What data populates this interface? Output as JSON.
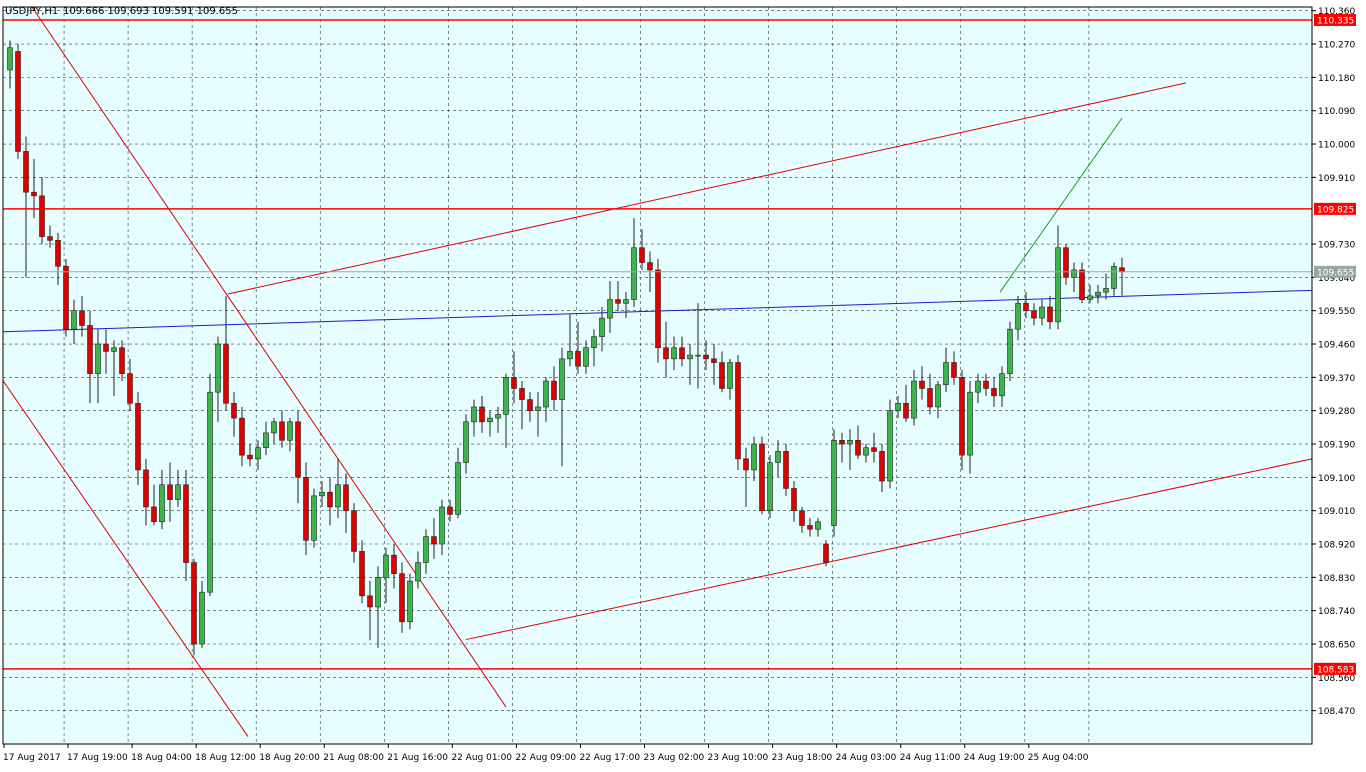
{
  "header": {
    "symbol": "USDJPY,H1",
    "ohlc": "109.666 109.693 109.591 109.655"
  },
  "colors": {
    "background": "#e6feff",
    "grid": "#3a3a3a",
    "bull": "#3cb44a",
    "bear": "#e00000",
    "level_line": "#ff0000",
    "trend_line": "#e00000",
    "mid_line": "#1c1ccc",
    "projection": "#1e9e1e",
    "last_price_line": "#9aa5a5"
  },
  "chart_data": {
    "type": "candlestick",
    "timeframe": "H1",
    "ylim": [
      108.38,
      110.37
    ],
    "y_ticks": [
      "110.360",
      "110.270",
      "110.180",
      "110.090",
      "110.000",
      "109.910",
      "109.730",
      "109.640",
      "109.550",
      "109.460",
      "109.370",
      "109.280",
      "109.190",
      "109.100",
      "109.010",
      "108.920",
      "108.830",
      "108.740",
      "108.650",
      "108.560",
      "108.470"
    ],
    "x_labels": [
      "17 Aug 2017",
      "17 Aug 19:00",
      "18 Aug 04:00",
      "18 Aug 12:00",
      "18 Aug 20:00",
      "21 Aug 08:00",
      "21 Aug 16:00",
      "22 Aug 01:00",
      "22 Aug 09:00",
      "22 Aug 17:00",
      "23 Aug 02:00",
      "23 Aug 10:00",
      "23 Aug 18:00",
      "24 Aug 03:00",
      "24 Aug 11:00",
      "24 Aug 19:00",
      "25 Aug 04:00"
    ],
    "levels": [
      {
        "label": "110.335",
        "value": 110.335
      },
      {
        "label": "109.825",
        "value": 109.825
      },
      {
        "label": "108.583",
        "value": 108.583
      }
    ],
    "last_price": {
      "label": "109.655",
      "value": 109.655
    },
    "candles": [
      {
        "o": 110.2,
        "h": 110.28,
        "l": 110.15,
        "c": 110.26
      },
      {
        "o": 110.25,
        "h": 110.27,
        "l": 109.96,
        "c": 109.98
      },
      {
        "o": 109.98,
        "h": 110.02,
        "l": 109.64,
        "c": 109.87
      },
      {
        "o": 109.87,
        "h": 109.96,
        "l": 109.8,
        "c": 109.86
      },
      {
        "o": 109.86,
        "h": 109.91,
        "l": 109.73,
        "c": 109.75
      },
      {
        "o": 109.75,
        "h": 109.78,
        "l": 109.72,
        "c": 109.74
      },
      {
        "o": 109.74,
        "h": 109.76,
        "l": 109.62,
        "c": 109.67
      },
      {
        "o": 109.67,
        "h": 109.69,
        "l": 109.48,
        "c": 109.5
      },
      {
        "o": 109.5,
        "h": 109.58,
        "l": 109.46,
        "c": 109.55
      },
      {
        "o": 109.55,
        "h": 109.59,
        "l": 109.48,
        "c": 109.51
      },
      {
        "o": 109.51,
        "h": 109.55,
        "l": 109.3,
        "c": 109.38
      },
      {
        "o": 109.38,
        "h": 109.5,
        "l": 109.3,
        "c": 109.46
      },
      {
        "o": 109.46,
        "h": 109.5,
        "l": 109.38,
        "c": 109.44
      },
      {
        "o": 109.44,
        "h": 109.47,
        "l": 109.32,
        "c": 109.45
      },
      {
        "o": 109.45,
        "h": 109.47,
        "l": 109.36,
        "c": 109.38
      },
      {
        "o": 109.38,
        "h": 109.42,
        "l": 109.28,
        "c": 109.3
      },
      {
        "o": 109.3,
        "h": 109.33,
        "l": 109.08,
        "c": 109.12
      },
      {
        "o": 109.12,
        "h": 109.15,
        "l": 108.97,
        "c": 109.02
      },
      {
        "o": 109.02,
        "h": 109.08,
        "l": 108.97,
        "c": 108.98
      },
      {
        "o": 108.98,
        "h": 109.12,
        "l": 108.96,
        "c": 109.08
      },
      {
        "o": 109.08,
        "h": 109.14,
        "l": 108.98,
        "c": 109.04
      },
      {
        "o": 109.04,
        "h": 109.12,
        "l": 109.02,
        "c": 109.08
      },
      {
        "o": 109.08,
        "h": 109.12,
        "l": 108.82,
        "c": 108.87
      },
      {
        "o": 108.87,
        "h": 108.88,
        "l": 108.62,
        "c": 108.65
      },
      {
        "o": 108.65,
        "h": 108.82,
        "l": 108.64,
        "c": 108.79
      },
      {
        "o": 108.79,
        "h": 109.38,
        "l": 108.78,
        "c": 109.33
      },
      {
        "o": 109.33,
        "h": 109.48,
        "l": 109.25,
        "c": 109.46
      },
      {
        "o": 109.46,
        "h": 109.59,
        "l": 109.28,
        "c": 109.3
      },
      {
        "o": 109.3,
        "h": 109.33,
        "l": 109.21,
        "c": 109.26
      },
      {
        "o": 109.26,
        "h": 109.29,
        "l": 109.13,
        "c": 109.16
      },
      {
        "o": 109.16,
        "h": 109.19,
        "l": 109.13,
        "c": 109.15
      },
      {
        "o": 109.15,
        "h": 109.2,
        "l": 109.12,
        "c": 109.18
      },
      {
        "o": 109.18,
        "h": 109.25,
        "l": 109.16,
        "c": 109.22
      },
      {
        "o": 109.22,
        "h": 109.26,
        "l": 109.19,
        "c": 109.25
      },
      {
        "o": 109.25,
        "h": 109.28,
        "l": 109.18,
        "c": 109.2
      },
      {
        "o": 109.2,
        "h": 109.26,
        "l": 109.17,
        "c": 109.25
      },
      {
        "o": 109.25,
        "h": 109.28,
        "l": 109.03,
        "c": 109.1
      },
      {
        "o": 109.1,
        "h": 109.14,
        "l": 108.89,
        "c": 108.93
      },
      {
        "o": 108.93,
        "h": 109.07,
        "l": 108.91,
        "c": 109.05
      },
      {
        "o": 109.05,
        "h": 109.09,
        "l": 109.02,
        "c": 109.06
      },
      {
        "o": 109.06,
        "h": 109.1,
        "l": 108.97,
        "c": 109.02
      },
      {
        "o": 109.02,
        "h": 109.15,
        "l": 108.99,
        "c": 109.08
      },
      {
        "o": 109.08,
        "h": 109.11,
        "l": 108.95,
        "c": 109.01
      },
      {
        "o": 109.01,
        "h": 109.03,
        "l": 108.87,
        "c": 108.9
      },
      {
        "o": 108.9,
        "h": 108.93,
        "l": 108.76,
        "c": 108.78
      },
      {
        "o": 108.78,
        "h": 108.82,
        "l": 108.66,
        "c": 108.75
      },
      {
        "o": 108.75,
        "h": 108.86,
        "l": 108.64,
        "c": 108.83
      },
      {
        "o": 108.83,
        "h": 108.91,
        "l": 108.76,
        "c": 108.89
      },
      {
        "o": 108.89,
        "h": 108.92,
        "l": 108.8,
        "c": 108.84
      },
      {
        "o": 108.84,
        "h": 108.87,
        "l": 108.68,
        "c": 108.71
      },
      {
        "o": 108.71,
        "h": 108.84,
        "l": 108.69,
        "c": 108.82
      },
      {
        "o": 108.82,
        "h": 108.9,
        "l": 108.8,
        "c": 108.87
      },
      {
        "o": 108.87,
        "h": 108.96,
        "l": 108.84,
        "c": 108.94
      },
      {
        "o": 108.94,
        "h": 108.99,
        "l": 108.88,
        "c": 108.92
      },
      {
        "o": 108.92,
        "h": 109.04,
        "l": 108.89,
        "c": 109.02
      },
      {
        "o": 109.02,
        "h": 109.04,
        "l": 108.98,
        "c": 109.0
      },
      {
        "o": 109.0,
        "h": 109.18,
        "l": 108.99,
        "c": 109.14
      },
      {
        "o": 109.14,
        "h": 109.27,
        "l": 109.11,
        "c": 109.25
      },
      {
        "o": 109.25,
        "h": 109.31,
        "l": 109.21,
        "c": 109.29
      },
      {
        "o": 109.29,
        "h": 109.32,
        "l": 109.22,
        "c": 109.25
      },
      {
        "o": 109.25,
        "h": 109.28,
        "l": 109.21,
        "c": 109.26
      },
      {
        "o": 109.26,
        "h": 109.29,
        "l": 109.22,
        "c": 109.27
      },
      {
        "o": 109.27,
        "h": 109.38,
        "l": 109.18,
        "c": 109.37
      },
      {
        "o": 109.37,
        "h": 109.44,
        "l": 109.3,
        "c": 109.34
      },
      {
        "o": 109.34,
        "h": 109.36,
        "l": 109.23,
        "c": 109.31
      },
      {
        "o": 109.31,
        "h": 109.33,
        "l": 109.25,
        "c": 109.28
      },
      {
        "o": 109.28,
        "h": 109.33,
        "l": 109.21,
        "c": 109.29
      },
      {
        "o": 109.29,
        "h": 109.37,
        "l": 109.25,
        "c": 109.36
      },
      {
        "o": 109.36,
        "h": 109.4,
        "l": 109.28,
        "c": 109.31
      },
      {
        "o": 109.31,
        "h": 109.45,
        "l": 109.13,
        "c": 109.42
      },
      {
        "o": 109.42,
        "h": 109.54,
        "l": 109.4,
        "c": 109.44
      },
      {
        "o": 109.44,
        "h": 109.52,
        "l": 109.38,
        "c": 109.4
      },
      {
        "o": 109.4,
        "h": 109.47,
        "l": 109.38,
        "c": 109.45
      },
      {
        "o": 109.45,
        "h": 109.5,
        "l": 109.4,
        "c": 109.48
      },
      {
        "o": 109.48,
        "h": 109.56,
        "l": 109.44,
        "c": 109.53
      },
      {
        "o": 109.53,
        "h": 109.63,
        "l": 109.49,
        "c": 109.58
      },
      {
        "o": 109.58,
        "h": 109.63,
        "l": 109.55,
        "c": 109.57
      },
      {
        "o": 109.57,
        "h": 109.6,
        "l": 109.53,
        "c": 109.58
      },
      {
        "o": 109.58,
        "h": 109.8,
        "l": 109.56,
        "c": 109.72
      },
      {
        "o": 109.72,
        "h": 109.77,
        "l": 109.66,
        "c": 109.68
      },
      {
        "o": 109.68,
        "h": 109.71,
        "l": 109.6,
        "c": 109.66
      },
      {
        "o": 109.66,
        "h": 109.69,
        "l": 109.41,
        "c": 109.45
      },
      {
        "o": 109.45,
        "h": 109.52,
        "l": 109.37,
        "c": 109.42
      },
      {
        "o": 109.42,
        "h": 109.48,
        "l": 109.39,
        "c": 109.45
      },
      {
        "o": 109.45,
        "h": 109.48,
        "l": 109.4,
        "c": 109.42
      },
      {
        "o": 109.42,
        "h": 109.46,
        "l": 109.35,
        "c": 109.43
      },
      {
        "o": 109.43,
        "h": 109.57,
        "l": 109.34,
        "c": 109.43
      },
      {
        "o": 109.43,
        "h": 109.47,
        "l": 109.39,
        "c": 109.42
      },
      {
        "o": 109.42,
        "h": 109.46,
        "l": 109.35,
        "c": 109.41
      },
      {
        "o": 109.41,
        "h": 109.44,
        "l": 109.33,
        "c": 109.34
      },
      {
        "o": 109.34,
        "h": 109.42,
        "l": 109.31,
        "c": 109.41
      },
      {
        "o": 109.41,
        "h": 109.43,
        "l": 109.12,
        "c": 109.15
      },
      {
        "o": 109.15,
        "h": 109.18,
        "l": 109.02,
        "c": 109.12
      },
      {
        "o": 109.12,
        "h": 109.21,
        "l": 109.09,
        "c": 109.19
      },
      {
        "o": 109.19,
        "h": 109.21,
        "l": 109.0,
        "c": 109.01
      },
      {
        "o": 109.01,
        "h": 109.16,
        "l": 108.99,
        "c": 109.14
      },
      {
        "o": 109.14,
        "h": 109.2,
        "l": 109.1,
        "c": 109.17
      },
      {
        "o": 109.17,
        "h": 109.19,
        "l": 109.05,
        "c": 109.07
      },
      {
        "o": 109.07,
        "h": 109.09,
        "l": 108.98,
        "c": 109.01
      },
      {
        "o": 109.01,
        "h": 109.02,
        "l": 108.95,
        "c": 108.97
      },
      {
        "o": 108.97,
        "h": 108.99,
        "l": 108.94,
        "c": 108.96
      },
      {
        "o": 108.96,
        "h": 108.99,
        "l": 108.94,
        "c": 108.98
      },
      {
        "o": 108.92,
        "h": 108.93,
        "l": 108.86,
        "c": 108.87
      },
      {
        "o": 108.97,
        "h": 109.23,
        "l": 108.94,
        "c": 109.2
      },
      {
        "o": 109.2,
        "h": 109.22,
        "l": 109.14,
        "c": 109.19
      },
      {
        "o": 109.19,
        "h": 109.23,
        "l": 109.12,
        "c": 109.2
      },
      {
        "o": 109.2,
        "h": 109.24,
        "l": 109.15,
        "c": 109.16
      },
      {
        "o": 109.16,
        "h": 109.19,
        "l": 109.14,
        "c": 109.18
      },
      {
        "o": 109.18,
        "h": 109.22,
        "l": 109.14,
        "c": 109.17
      },
      {
        "o": 109.17,
        "h": 109.19,
        "l": 109.06,
        "c": 109.09
      },
      {
        "o": 109.09,
        "h": 109.31,
        "l": 109.07,
        "c": 109.28
      },
      {
        "o": 109.28,
        "h": 109.32,
        "l": 109.26,
        "c": 109.3
      },
      {
        "o": 109.3,
        "h": 109.35,
        "l": 109.25,
        "c": 109.26
      },
      {
        "o": 109.26,
        "h": 109.39,
        "l": 109.24,
        "c": 109.36
      },
      {
        "o": 109.36,
        "h": 109.4,
        "l": 109.31,
        "c": 109.34
      },
      {
        "o": 109.34,
        "h": 109.38,
        "l": 109.27,
        "c": 109.29
      },
      {
        "o": 109.29,
        "h": 109.36,
        "l": 109.26,
        "c": 109.35
      },
      {
        "o": 109.35,
        "h": 109.45,
        "l": 109.33,
        "c": 109.41
      },
      {
        "o": 109.41,
        "h": 109.44,
        "l": 109.35,
        "c": 109.37
      },
      {
        "o": 109.37,
        "h": 109.39,
        "l": 109.12,
        "c": 109.16
      },
      {
        "o": 109.16,
        "h": 109.36,
        "l": 109.11,
        "c": 109.33
      },
      {
        "o": 109.33,
        "h": 109.38,
        "l": 109.3,
        "c": 109.36
      },
      {
        "o": 109.36,
        "h": 109.38,
        "l": 109.32,
        "c": 109.34
      },
      {
        "o": 109.34,
        "h": 109.37,
        "l": 109.29,
        "c": 109.32
      },
      {
        "o": 109.32,
        "h": 109.4,
        "l": 109.29,
        "c": 109.38
      },
      {
        "o": 109.38,
        "h": 109.52,
        "l": 109.36,
        "c": 109.5
      },
      {
        "o": 109.5,
        "h": 109.59,
        "l": 109.47,
        "c": 109.57
      },
      {
        "o": 109.57,
        "h": 109.6,
        "l": 109.53,
        "c": 109.55
      },
      {
        "o": 109.55,
        "h": 109.57,
        "l": 109.51,
        "c": 109.53
      },
      {
        "o": 109.53,
        "h": 109.58,
        "l": 109.51,
        "c": 109.56
      },
      {
        "o": 109.56,
        "h": 109.59,
        "l": 109.5,
        "c": 109.52
      },
      {
        "o": 109.52,
        "h": 109.78,
        "l": 109.5,
        "c": 109.72
      },
      {
        "o": 109.72,
        "h": 109.73,
        "l": 109.62,
        "c": 109.64
      },
      {
        "o": 109.64,
        "h": 109.68,
        "l": 109.6,
        "c": 109.66
      },
      {
        "o": 109.66,
        "h": 109.68,
        "l": 109.57,
        "c": 109.58
      },
      {
        "o": 109.58,
        "h": 109.62,
        "l": 109.57,
        "c": 109.59
      },
      {
        "o": 109.59,
        "h": 109.62,
        "l": 109.57,
        "c": 109.6
      },
      {
        "o": 109.6,
        "h": 109.65,
        "l": 109.58,
        "c": 109.61
      },
      {
        "o": 109.61,
        "h": 109.68,
        "l": 109.59,
        "c": 109.67
      },
      {
        "o": 109.666,
        "h": 109.693,
        "l": 109.591,
        "c": 109.655
      }
    ]
  }
}
